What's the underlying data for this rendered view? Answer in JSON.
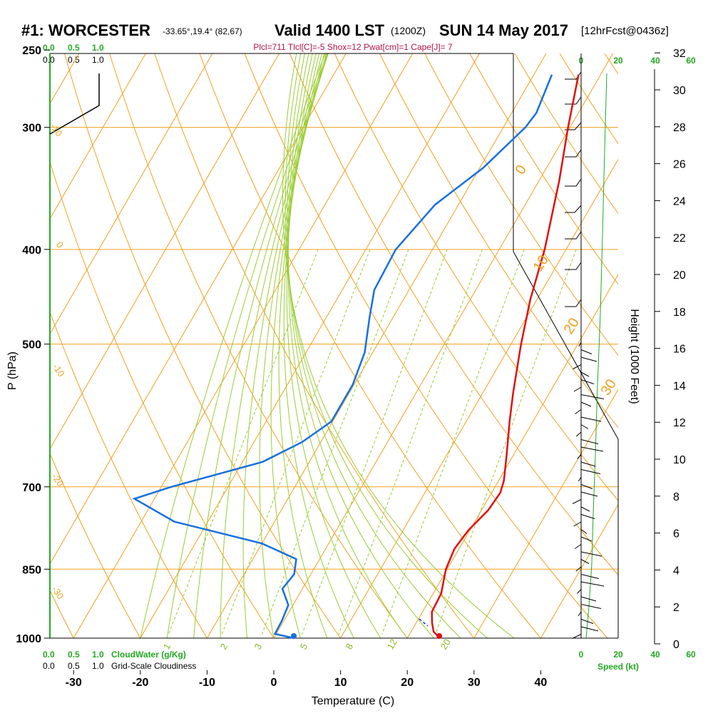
{
  "header": {
    "station": "#1: WORCESTER",
    "coords": "-33.65°,19.4° (82,67)",
    "valid": "Valid 1400 LST",
    "utc": "(1200Z)",
    "date": "SUN 14 May 2017",
    "forecast": "[12hrFcst@0436z]",
    "params": "Plcl=711 Tlcl[C]=-5 Shox=12 Pwat[cm]=1 Cape[J]= 7"
  },
  "cloud_scale": {
    "top_green": [
      "0.0",
      "0.5",
      "1.0"
    ],
    "top_black": [
      "0.0",
      "0.5",
      "1.0"
    ],
    "bottom_green": [
      "0.0",
      "0.5",
      "1.0"
    ],
    "bottom_green_label": "CloudWater (g/Kg)",
    "bottom_black": [
      "0.0",
      "0.5",
      "1.0"
    ],
    "bottom_black_label": "Grid-Scale Cloudiness"
  },
  "wind_scale": {
    "top": [
      "0",
      "20",
      "40",
      "60"
    ],
    "bottom": [
      "0",
      "20",
      "40",
      "60"
    ],
    "label": "Speed (kt)"
  },
  "chart_data": {
    "type": "line",
    "title": "Valid 1400 LST (1200Z) SUN 14 May 2017",
    "xlabel": "Temperature (C)",
    "ylabel": "P (hPa)",
    "y2label": "Height (1000 Feet)",
    "x_ticks": [
      "-30",
      "-20",
      "-10",
      "0",
      "10",
      "20",
      "30",
      "40"
    ],
    "y_ticks": [
      "250",
      "300",
      "400",
      "500",
      "700",
      "850",
      "1000"
    ],
    "height_ticks": [
      "0",
      "2",
      "4",
      "6",
      "8",
      "10",
      "12",
      "14",
      "16",
      "18",
      "20",
      "22",
      "24",
      "26",
      "28",
      "30",
      "32"
    ],
    "isotherm_labels": [
      "0",
      "10",
      "20",
      "30"
    ],
    "dry_adiabat_labels": [
      "0",
      "-10",
      "-20",
      "-30",
      "-10",
      "-20"
    ],
    "mixing_ratio_labels": [
      "1",
      "2",
      "3",
      "5",
      "8",
      "12",
      "20"
    ],
    "xlim": [
      -33,
      36
    ],
    "ylim": [
      1000,
      250
    ],
    "series": [
      {
        "name": "Temperature",
        "color": "#e01010",
        "points": [
          {
            "p": 265,
            "t": -3.3
          },
          {
            "p": 300,
            "t": -0.3
          },
          {
            "p": 340,
            "t": 3.0
          },
          {
            "p": 400,
            "t": 6.8
          },
          {
            "p": 450,
            "t": 9.0
          },
          {
            "p": 500,
            "t": 11.5
          },
          {
            "p": 560,
            "t": 14.5
          },
          {
            "p": 600,
            "t": 16.5
          },
          {
            "p": 650,
            "t": 19.0
          },
          {
            "p": 690,
            "t": 20.8
          },
          {
            "p": 710,
            "t": 21.3
          },
          {
            "p": 740,
            "t": 21.0
          },
          {
            "p": 775,
            "t": 19.8
          },
          {
            "p": 810,
            "t": 19.3
          },
          {
            "p": 850,
            "t": 19.8
          },
          {
            "p": 900,
            "t": 21.2
          },
          {
            "p": 940,
            "t": 21.4
          },
          {
            "p": 965,
            "t": 22.4
          },
          {
            "p": 985,
            "t": 23.4
          },
          {
            "p": 995,
            "t": 24.4
          },
          {
            "p": 1000,
            "t": 24.8
          }
        ]
      },
      {
        "name": "Dewpoint",
        "color": "#1870e0",
        "points": [
          {
            "p": 265,
            "t": -7.3
          },
          {
            "p": 290,
            "t": -6.3
          },
          {
            "p": 300,
            "t": -6.7
          },
          {
            "p": 330,
            "t": -9.5
          },
          {
            "p": 360,
            "t": -13.5
          },
          {
            "p": 400,
            "t": -15.5
          },
          {
            "p": 440,
            "t": -15.2
          },
          {
            "p": 470,
            "t": -13.5
          },
          {
            "p": 510,
            "t": -11.2
          },
          {
            "p": 550,
            "t": -10.2
          },
          {
            "p": 600,
            "t": -10.2
          },
          {
            "p": 630,
            "t": -12.8
          },
          {
            "p": 660,
            "t": -17.0
          },
          {
            "p": 700,
            "t": -28.5
          },
          {
            "p": 720,
            "t": -33.0
          },
          {
            "p": 760,
            "t": -25.0
          },
          {
            "p": 800,
            "t": -10.0
          },
          {
            "p": 830,
            "t": -3.5
          },
          {
            "p": 860,
            "t": -2.5
          },
          {
            "p": 890,
            "t": -3.0
          },
          {
            "p": 925,
            "t": -0.7
          },
          {
            "p": 960,
            "t": -0.3
          },
          {
            "p": 990,
            "t": -0.2
          },
          {
            "p": 1000,
            "t": 3.0
          }
        ]
      }
    ],
    "surface_dewpoint": {
      "p": 1000,
      "t": 3.0,
      "color": "#1870e0"
    },
    "surface_temperature": {
      "p": 1000,
      "t": 24.8,
      "color": "#e01010"
    }
  },
  "colors": {
    "isobar": "#f0a020",
    "isotherm": "#f0a020",
    "dry_adiabat": "#f0a020",
    "moist_adiabat": "#99cc33",
    "mixing_ratio": "#99cc33",
    "cloud_water": "#22aa22",
    "wind_profile": "#22aa22"
  }
}
